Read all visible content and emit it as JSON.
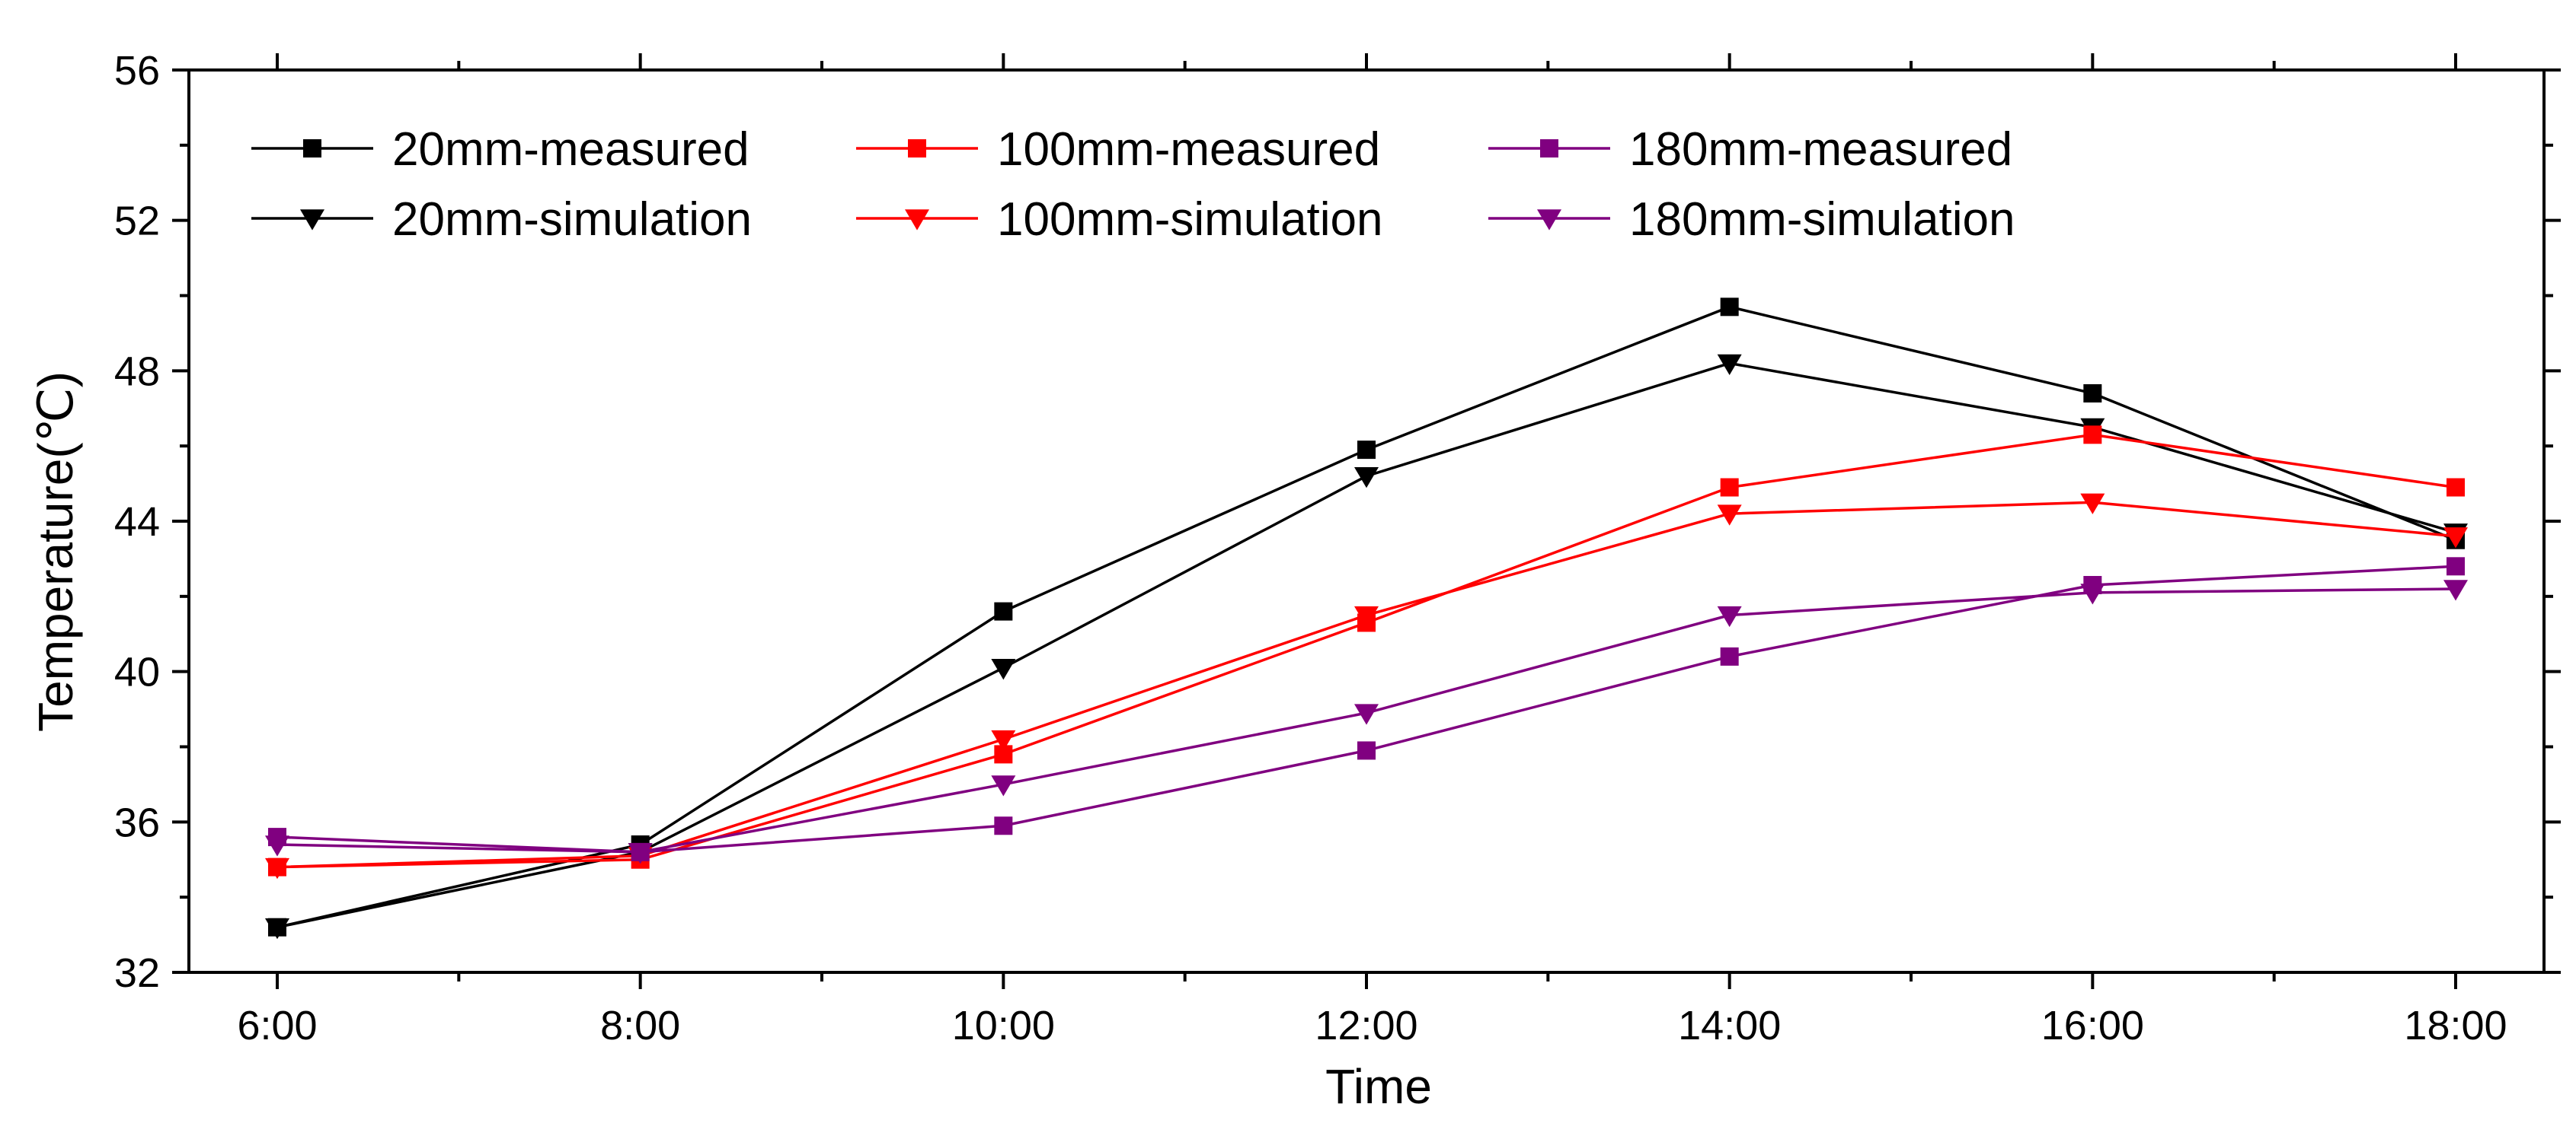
{
  "chart_data": {
    "type": "line",
    "xlabel": "Time",
    "ylabel": "Temperature(℃)",
    "categories": [
      "6:00",
      "8:00",
      "10:00",
      "12:00",
      "14:00",
      "16:00",
      "18:00"
    ],
    "ylim": [
      32,
      56
    ],
    "yticks": [
      "32",
      "36",
      "40",
      "44",
      "48",
      "52",
      "56"
    ],
    "grid": false,
    "legend_position": "top-left",
    "series": [
      {
        "name": "20mm-measured",
        "color": "#000000",
        "marker": "square",
        "values": [
          33.2,
          35.4,
          41.6,
          45.9,
          49.7,
          47.4,
          43.5
        ]
      },
      {
        "name": "20mm-simulation",
        "color": "#000000",
        "marker": "triangle-down",
        "values": [
          33.2,
          35.2,
          40.1,
          45.2,
          48.2,
          46.5,
          43.7
        ]
      },
      {
        "name": "100mm-measured",
        "color": "#ff0000",
        "marker": "square",
        "values": [
          34.8,
          35.0,
          37.8,
          41.3,
          44.9,
          46.3,
          44.9
        ]
      },
      {
        "name": "100mm-simulation",
        "color": "#ff0000",
        "marker": "triangle-down",
        "values": [
          34.8,
          35.1,
          38.2,
          41.5,
          44.2,
          44.5,
          43.6
        ]
      },
      {
        "name": "180mm-measured",
        "color": "#800080",
        "marker": "square",
        "values": [
          35.6,
          35.2,
          35.9,
          37.9,
          40.4,
          42.3,
          42.8
        ]
      },
      {
        "name": "180mm-simulation",
        "color": "#800080",
        "marker": "triangle-down",
        "values": [
          35.4,
          35.2,
          37.0,
          38.9,
          41.5,
          42.1,
          42.2
        ]
      }
    ]
  }
}
